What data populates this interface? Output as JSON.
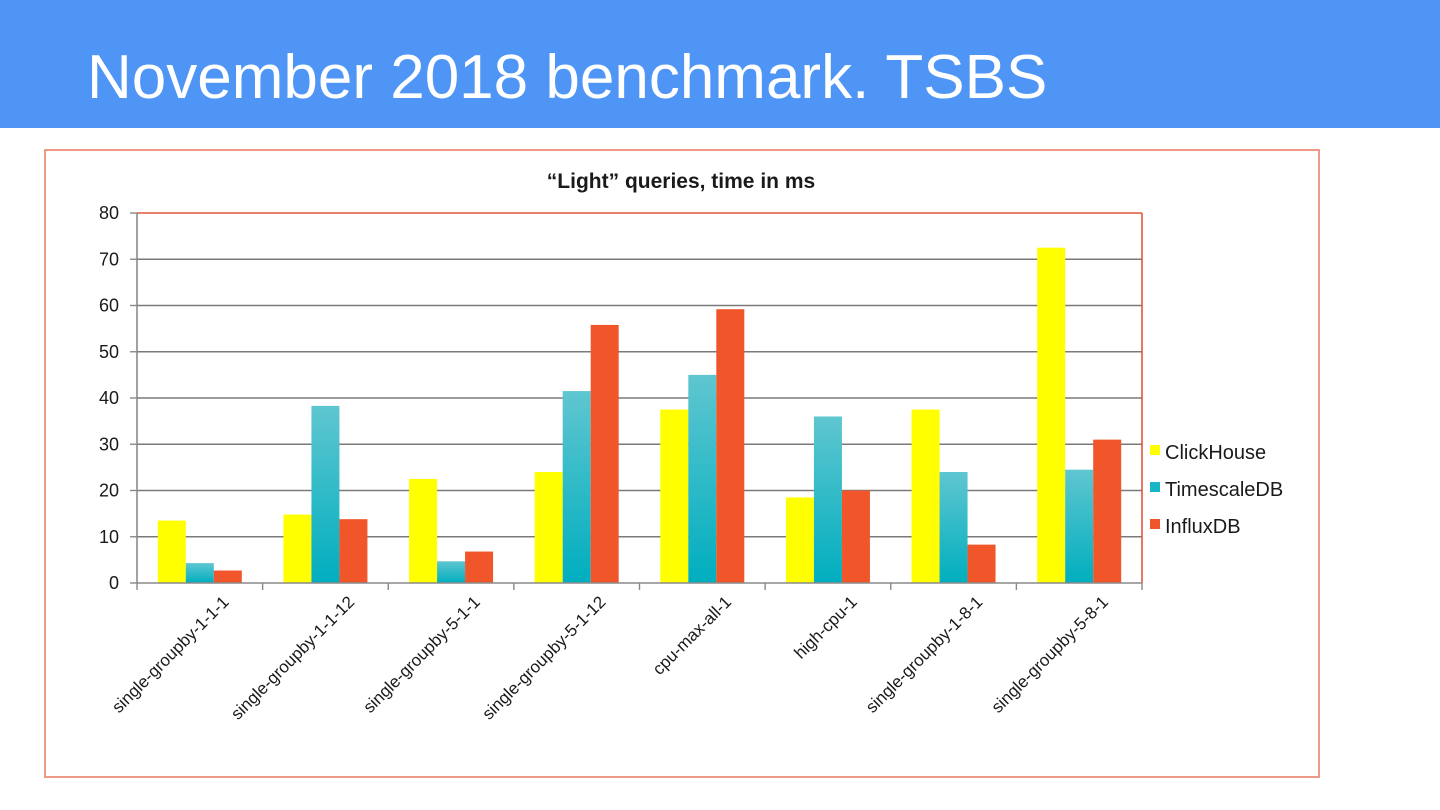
{
  "slide": {
    "title": "November 2018 benchmark. TSBS"
  },
  "colors": {
    "header_bg": "#4f95f5",
    "frame_border": "#ef9a86",
    "plot_border": "#e2563a"
  },
  "chart_data": {
    "type": "bar",
    "title": "“Light” queries, time in ms",
    "xlabel": "",
    "ylabel": "",
    "ylim": [
      0,
      80
    ],
    "yticks": [
      0,
      10,
      20,
      30,
      40,
      50,
      60,
      70,
      80
    ],
    "grid": true,
    "legend_position": "right",
    "categories": [
      "single-groupby-1-1-1",
      "single-groupby-1-1-12",
      "single-groupby-5-1-1",
      "single-groupby-5-1-12",
      "cpu-max-all-1",
      "high-cpu-1",
      "single-groupby-1-8-1",
      "single-groupby-5-8-1"
    ],
    "series": [
      {
        "name": "ClickHouse",
        "color": "#ffff00",
        "values": [
          13.5,
          14.8,
          22.5,
          24,
          37.5,
          18.5,
          37.5,
          72.5
        ]
      },
      {
        "name": "TimescaleDB",
        "color": "#17b5c6",
        "values": [
          4.3,
          38.3,
          4.7,
          41.5,
          45,
          36,
          24,
          24.5
        ]
      },
      {
        "name": "InfluxDB",
        "color": "#f0562a",
        "values": [
          2.7,
          13.8,
          6.8,
          55.8,
          59.2,
          20,
          8.3,
          31
        ]
      }
    ]
  }
}
